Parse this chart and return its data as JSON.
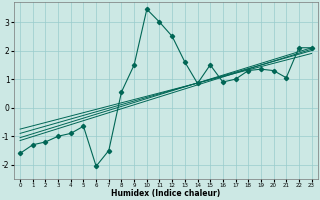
{
  "title": "",
  "xlabel": "Humidex (Indice chaleur)",
  "bg_color": "#cce8e4",
  "grid_color": "#99cccc",
  "line_color": "#006655",
  "xlim": [
    -0.5,
    23.5
  ],
  "ylim": [
    -2.5,
    3.7
  ],
  "yticks": [
    -2,
    -1,
    0,
    1,
    2,
    3
  ],
  "xticks": [
    0,
    1,
    2,
    3,
    4,
    5,
    6,
    7,
    8,
    9,
    10,
    11,
    12,
    13,
    14,
    15,
    16,
    17,
    18,
    19,
    20,
    21,
    22,
    23
  ],
  "main_x": [
    0,
    1,
    2,
    3,
    4,
    5,
    6,
    7,
    8,
    9,
    10,
    11,
    12,
    13,
    14,
    15,
    16,
    17,
    18,
    19,
    20,
    21,
    22,
    23
  ],
  "main_y": [
    -1.6,
    -1.3,
    -1.2,
    -1.0,
    -0.9,
    -0.65,
    -2.05,
    -1.5,
    0.55,
    1.5,
    3.45,
    3.0,
    2.5,
    1.6,
    0.85,
    1.5,
    0.9,
    1.0,
    1.3,
    1.35,
    1.3,
    1.05,
    2.1,
    2.1
  ],
  "reg_lines": [
    [
      -1.15,
      2.05
    ],
    [
      -1.05,
      2.1
    ],
    [
      -0.9,
      2.0
    ],
    [
      -0.75,
      1.9
    ]
  ]
}
